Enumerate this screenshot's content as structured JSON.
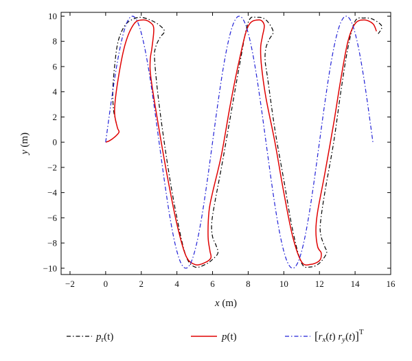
{
  "chart_data": {
    "type": "line",
    "title": "",
    "xlabel": {
      "var": "x",
      "unit": " (m)"
    },
    "ylabel": {
      "var": "y",
      "unit": " (m)"
    },
    "xlim": [
      -2.5,
      16
    ],
    "ylim": [
      -10.5,
      10.3
    ],
    "xticks": [
      -2,
      0,
      2,
      4,
      6,
      8,
      10,
      12,
      14,
      16
    ],
    "yticks": [
      -10,
      -8,
      -6,
      -4,
      -2,
      0,
      2,
      4,
      6,
      8,
      10
    ],
    "xtick_labels": [
      "−2",
      "0",
      "2",
      "4",
      "6",
      "8",
      "10",
      "12",
      "14",
      "16"
    ],
    "ytick_labels": [
      "−10",
      "−8",
      "−6",
      "−4",
      "−2",
      "0",
      "2",
      "4",
      "6",
      "8",
      "10"
    ],
    "grid": false,
    "legend_position": "bottom",
    "series": [
      {
        "name": "p_r(t)",
        "label": {
          "var": "p",
          "sub": "r",
          "arg": "(t)"
        },
        "color": "#000000",
        "style": "dash-dot",
        "x": [
          0.6,
          0.45,
          0.4,
          0.5,
          0.7,
          1.1,
          1.6,
          2.0,
          2.5,
          3.0,
          3.3,
          3.05,
          2.8,
          2.75,
          3.0,
          3.5,
          4.0,
          4.5,
          5.0,
          5.6,
          6.0,
          6.3,
          6.2,
          6.0,
          5.95,
          6.1,
          6.5,
          7.0,
          7.5,
          8.0,
          8.5,
          9.0,
          9.4,
          9.2,
          9.0,
          8.95,
          9.1,
          9.5,
          10.0,
          10.5,
          11.0,
          11.5,
          12.0,
          12.4,
          12.3,
          12.1,
          12.05,
          12.3,
          12.8,
          13.2,
          13.6,
          14.0,
          14.5,
          15.0,
          15.5,
          15.3
        ],
        "y": [
          1.5,
          2.5,
          4.0,
          6.0,
          8.0,
          9.3,
          9.8,
          9.9,
          9.7,
          9.3,
          8.8,
          8.3,
          7.5,
          6.5,
          3.0,
          -2.0,
          -6.0,
          -9.0,
          -9.9,
          -9.7,
          -9.3,
          -8.8,
          -8.2,
          -7.5,
          -6.5,
          -5.0,
          -2.0,
          2.0,
          6.0,
          9.5,
          9.9,
          9.7,
          8.8,
          8.2,
          7.5,
          6.5,
          5.0,
          1.0,
          -3.0,
          -7.0,
          -9.6,
          -9.9,
          -9.6,
          -8.8,
          -8.3,
          -7.5,
          -6.5,
          -4.0,
          0.0,
          4.0,
          7.5,
          9.6,
          9.85,
          9.75,
          9.2,
          8.6
        ]
      },
      {
        "name": "p(t)",
        "label": {
          "var": "p",
          "sub": "",
          "arg": "(t)"
        },
        "color": "#e00000",
        "style": "solid",
        "x": [
          0.0,
          0.2,
          0.5,
          0.75,
          0.65,
          0.5,
          0.7,
          1.1,
          1.6,
          2.1,
          2.5,
          2.7,
          2.6,
          2.5,
          2.55,
          3.0,
          3.5,
          4.0,
          4.5,
          5.0,
          5.5,
          5.9,
          5.85,
          5.75,
          5.8,
          6.0,
          6.5,
          7.0,
          7.5,
          8.0,
          8.6,
          8.9,
          8.8,
          8.7,
          8.75,
          9.0,
          9.5,
          10.0,
          10.5,
          11.0,
          11.5,
          12.0,
          12.1,
          11.9,
          11.8,
          11.9,
          12.3,
          12.8,
          13.2,
          13.6,
          14.0,
          14.5,
          15.0,
          15.2
        ],
        "y": [
          0.0,
          0.1,
          0.4,
          0.8,
          1.2,
          2.5,
          5.0,
          7.8,
          9.4,
          9.7,
          9.5,
          9.0,
          7.5,
          6.5,
          5.0,
          1.0,
          -3.0,
          -6.5,
          -9.0,
          -9.7,
          -9.6,
          -9.2,
          -8.6,
          -7.5,
          -5.5,
          -4.0,
          -1.0,
          3.0,
          6.5,
          9.2,
          9.7,
          9.3,
          8.4,
          7.5,
          6.0,
          3.5,
          0.0,
          -4.0,
          -7.5,
          -9.5,
          -9.7,
          -9.4,
          -8.8,
          -8.3,
          -7.0,
          -5.5,
          -2.5,
          1.5,
          5.0,
          8.0,
          9.4,
          9.7,
          9.4,
          8.8
        ]
      },
      {
        "name": "[r_x(t) r_y(t)]^T",
        "label": {
          "text": "[rx(t)  ry(t)]T"
        },
        "color": "#1f1fd6",
        "style": "dash-dot",
        "x": [
          0.0,
          0.3,
          0.6,
          0.9,
          1.2,
          1.5,
          1.8,
          2.1,
          2.4,
          2.7,
          3.0,
          3.3,
          3.6,
          3.9,
          4.2,
          4.5,
          4.8,
          5.1,
          5.4,
          5.7,
          6.0,
          6.3,
          6.6,
          6.9,
          7.2,
          7.5,
          7.8,
          8.1,
          8.4,
          8.7,
          9.0,
          9.3,
          9.6,
          9.9,
          10.2,
          10.5,
          10.8,
          11.1,
          11.4,
          11.7,
          12.0,
          12.3,
          12.6,
          12.9,
          13.2,
          13.5,
          13.8,
          14.1,
          14.4,
          14.7,
          15.0
        ],
        "y": [
          0.0,
          3.09,
          5.88,
          8.09,
          9.51,
          10.0,
          9.51,
          8.09,
          5.88,
          3.09,
          0.0,
          -3.09,
          -5.88,
          -8.09,
          -9.51,
          -10.0,
          -9.51,
          -8.09,
          -5.88,
          -3.09,
          0.0,
          3.09,
          5.88,
          8.09,
          9.51,
          10.0,
          9.51,
          8.09,
          5.88,
          3.09,
          0.0,
          -3.09,
          -5.88,
          -8.09,
          -9.51,
          -10.0,
          -9.51,
          -8.09,
          -5.88,
          -3.09,
          0.0,
          3.09,
          5.88,
          8.09,
          9.51,
          10.0,
          9.51,
          8.09,
          5.88,
          3.09,
          0.0
        ]
      }
    ]
  }
}
